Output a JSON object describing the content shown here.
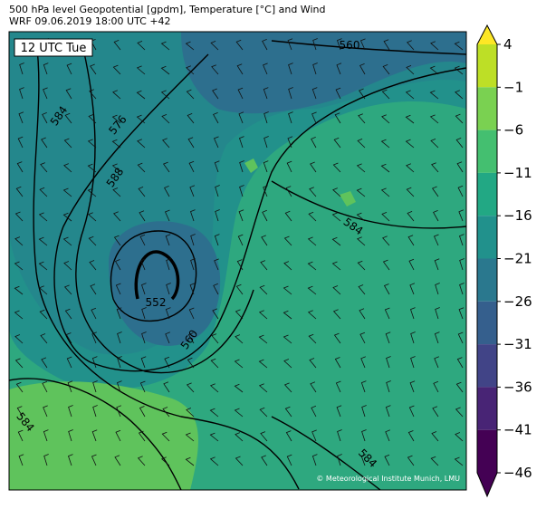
{
  "header": {
    "line1": "500 hPa level Geopotential [gpdm], Temperature [°C] and Wind",
    "line2": "WRF 09.06.2019 18:00 UTC +42"
  },
  "map": {
    "time_label": "12 UTC Tue",
    "credit": "© Meteorological Institute Munich, LMU",
    "contour_labels": [
      560,
      584,
      576,
      588,
      584,
      552,
      560,
      584,
      584
    ]
  },
  "colorbar": {
    "ticks": [
      {
        "value": 4,
        "label": "4"
      },
      {
        "value": -1,
        "label": "−1"
      },
      {
        "value": -6,
        "label": "−6"
      },
      {
        "value": -11,
        "label": "−11"
      },
      {
        "value": -16,
        "label": "−16"
      },
      {
        "value": -21,
        "label": "−21"
      },
      {
        "value": -26,
        "label": "−26"
      },
      {
        "value": -31,
        "label": "−31"
      },
      {
        "value": -36,
        "label": "−36"
      },
      {
        "value": -41,
        "label": "−41"
      },
      {
        "value": -46,
        "label": "−46"
      }
    ],
    "colors": [
      "#fde725",
      "#bddf26",
      "#7ad151",
      "#44bf70",
      "#22a884",
      "#21918c",
      "#2a788e",
      "#355f8d",
      "#414487",
      "#482475",
      "#440154",
      "#440154"
    ]
  }
}
